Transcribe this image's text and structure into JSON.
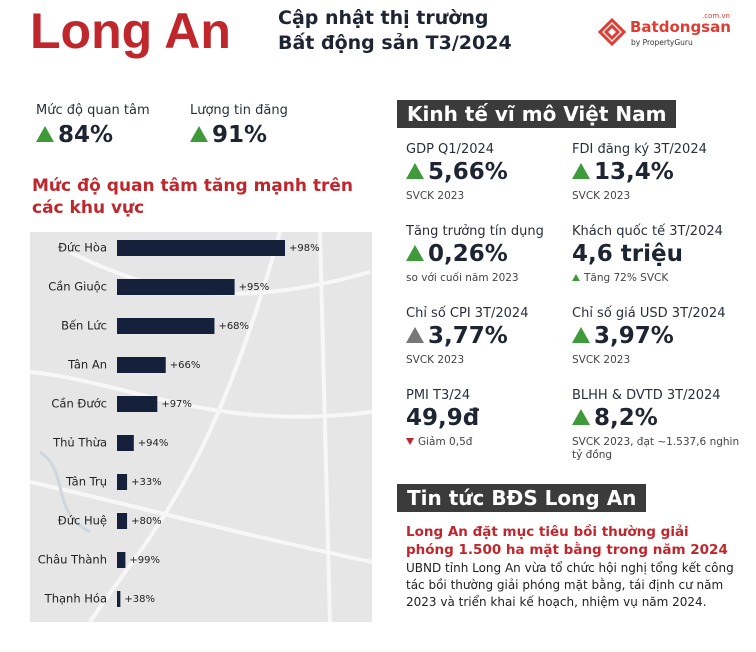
{
  "header": {
    "title": "Long An",
    "subtitle_1": "Cập nhật thị trường",
    "subtitle_2": "Bất động sản T3/2024",
    "logo": "Batdongsan",
    "logo_domain": ".com.vn",
    "logo_by": "by PropertyGuru"
  },
  "stats": [
    {
      "label": "Mức độ quan tâm",
      "value": "84%"
    },
    {
      "label": "Lượng tin đăng",
      "value": "91%"
    }
  ],
  "chart_data": {
    "type": "bar",
    "orientation": "horizontal",
    "title": "Mức độ quan tâm tăng mạnh trên các khu vực",
    "categories": [
      "Đức Hòa",
      "Cần Giuộc",
      "Bến Lức",
      "Tân An",
      "Cần Đước",
      "Thủ Thừa",
      "Tân Trụ",
      "Đức Huệ",
      "Châu Thành",
      "Thạnh Hóa"
    ],
    "values": [
      100,
      70,
      58,
      29,
      24,
      10,
      6,
      6,
      5,
      2
    ],
    "changes": [
      "+98%",
      "+95%",
      "+68%",
      "+66%",
      "+97%",
      "+94%",
      "+33%",
      "+80%",
      "+99%",
      "+38%"
    ],
    "color": "#15213a",
    "xlim": [
      0,
      100
    ]
  },
  "macro": {
    "title": "Kinh tế vĩ mô Việt Nam",
    "items": [
      {
        "label": "GDP Q1/2024",
        "value": "5,66%",
        "note": "SVCK 2023",
        "arrow_color": "#3f9a3a"
      },
      {
        "label": "FDI đăng ký 3T/2024",
        "value": "13,4%",
        "note": "SVCK 2023",
        "arrow_color": "#3f9a3a"
      },
      {
        "label": "Tăng trưởng tín dụng",
        "value": "0,26%",
        "note": "so với cuối năm 2023",
        "arrow_color": "#3f9a3a"
      },
      {
        "label": "Khách quốc tế 3T/2024",
        "value": "4,6 triệu",
        "note": "Tăng 72% SVCK",
        "note_arrow": "#3f9a3a"
      },
      {
        "label": "Chỉ số CPI 3T/2024",
        "value": "3,77%",
        "note": "SVCK 2023",
        "arrow_color": "#777777"
      },
      {
        "label": "Chỉ số giá USD 3T/2024",
        "value": "3,97%",
        "note": "SVCK 2023",
        "arrow_color": "#3f9a3a"
      },
      {
        "label": "PMI T3/24",
        "value": "49,9đ",
        "note": "Giảm 0,5đ",
        "note_arrow_down": "#c0272d"
      },
      {
        "label": "BLHH & DVTD 3T/2024",
        "value": "8,2%",
        "note": "SVCK 2023, đạt ~1.537,6 nghin tỷ đồng",
        "arrow_color": "#3f9a3a"
      }
    ]
  },
  "news": {
    "title": "Tin tức BĐS Long An",
    "headline": "Long An đặt mục tiêu bồi thường giải phóng 1.500 ha mặt bằng trong năm 2024",
    "body": "UBND tỉnh Long An vừa tổ chức hội nghị tổng kết công tác bồi thường giải phóng mặt bằng, tái định cư năm 2023 và triển khai kế hoạch, nhiệm vụ năm 2024."
  }
}
